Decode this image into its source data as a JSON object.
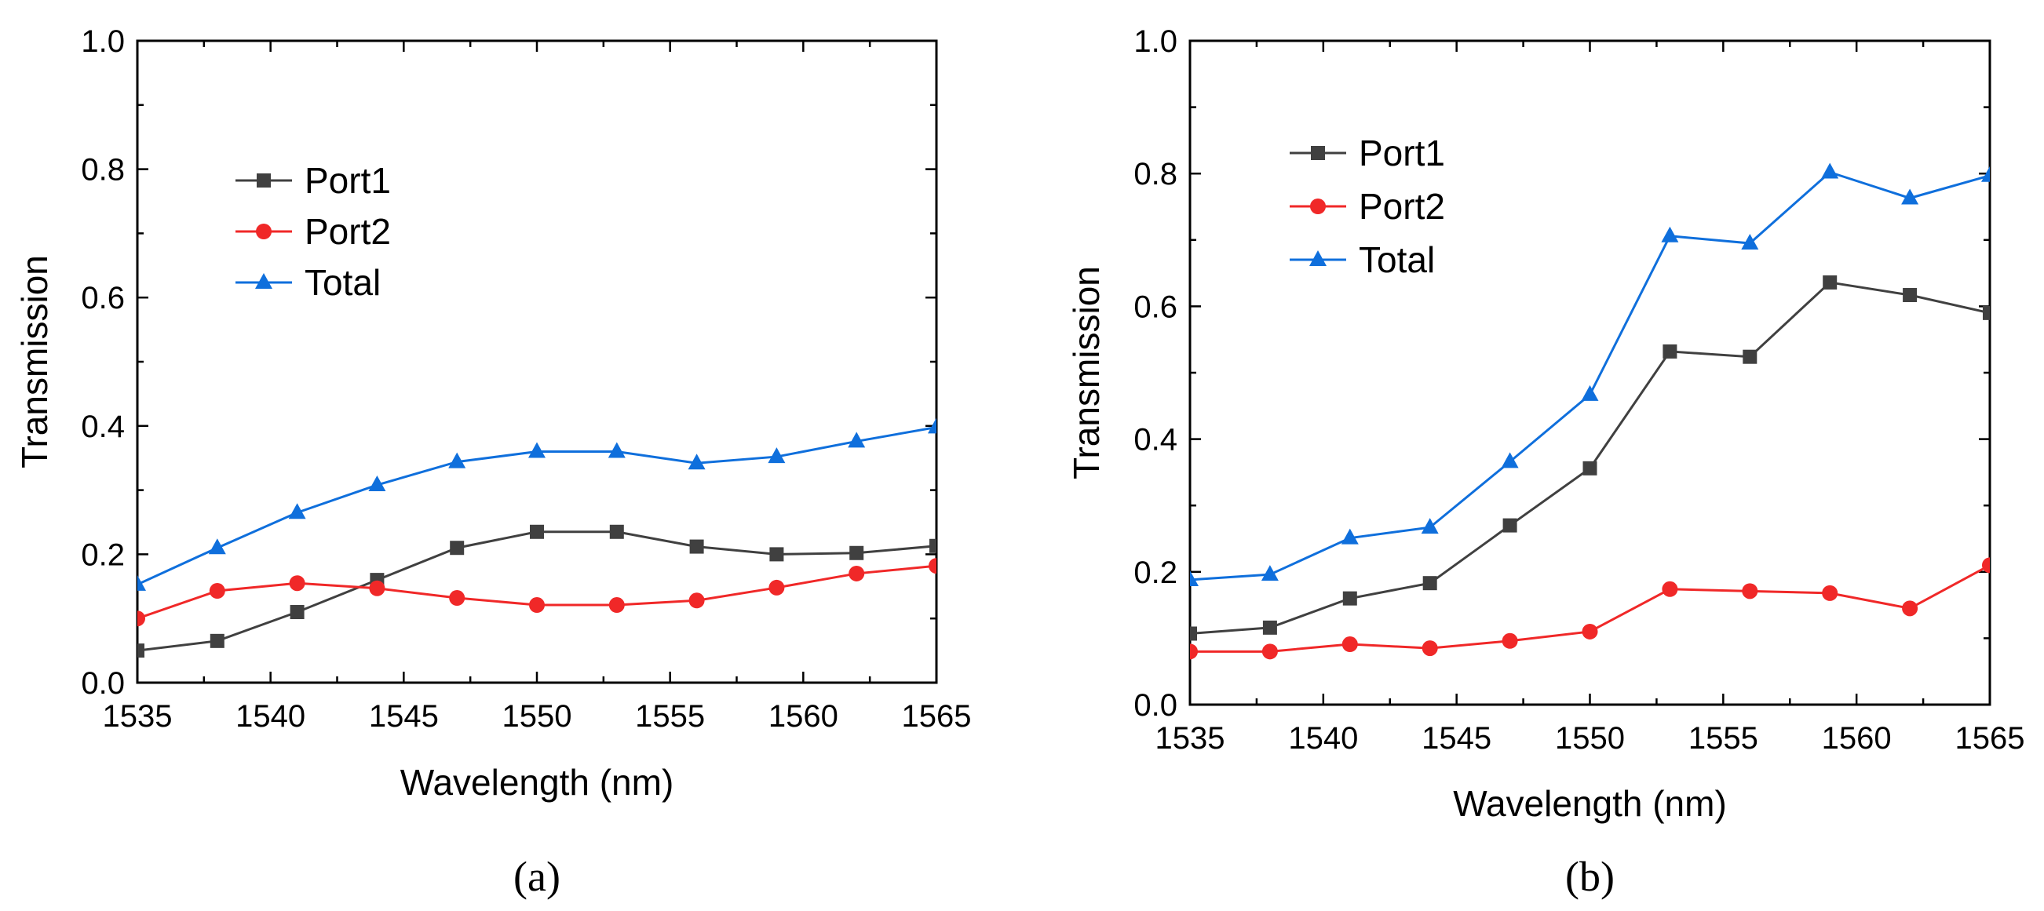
{
  "chart_data": [
    {
      "type": "line",
      "panel_label": "(a)",
      "xlabel": "Wavelength (nm)",
      "ylabel": "Transmission",
      "xlim": [
        1535,
        1565
      ],
      "ylim": [
        0.0,
        1.0
      ],
      "xticks": [
        1535,
        1540,
        1545,
        1550,
        1555,
        1560,
        1565
      ],
      "yticks": [
        0.0,
        0.2,
        0.4,
        0.6,
        0.8,
        1.0
      ],
      "ytick_labels": [
        "0.0",
        "0.2",
        "0.4",
        "0.6",
        "0.8",
        "1.0"
      ],
      "legend_position": "upper-left",
      "grid": false,
      "x": [
        1535,
        1538,
        1541,
        1544,
        1547,
        1550,
        1553,
        1556,
        1559,
        1562,
        1565
      ],
      "series": [
        {
          "name": "Port1",
          "color": "#404040",
          "marker": "square",
          "values": [
            0.05,
            0.065,
            0.11,
            0.16,
            0.21,
            0.235,
            0.235,
            0.212,
            0.2,
            0.202,
            0.213
          ]
        },
        {
          "name": "Port2",
          "color": "#f02828",
          "marker": "circle",
          "values": [
            0.1,
            0.143,
            0.155,
            0.147,
            0.132,
            0.121,
            0.121,
            0.128,
            0.148,
            0.17,
            0.182
          ]
        },
        {
          "name": "Total",
          "color": "#0f6fdc",
          "marker": "triangle",
          "values": [
            0.153,
            0.21,
            0.265,
            0.308,
            0.344,
            0.36,
            0.36,
            0.342,
            0.352,
            0.376,
            0.398
          ]
        }
      ]
    },
    {
      "type": "line",
      "panel_label": "(b)",
      "xlabel": "Wavelength (nm)",
      "ylabel": "Transmission",
      "xlim": [
        1535,
        1565
      ],
      "ylim": [
        0.0,
        1.0
      ],
      "xticks": [
        1535,
        1540,
        1545,
        1550,
        1555,
        1560,
        1565
      ],
      "yticks": [
        0.0,
        0.2,
        0.4,
        0.6,
        0.8,
        1.0
      ],
      "ytick_labels": [
        "0.0",
        "0.2",
        "0.4",
        "0.6",
        "0.8",
        "1.0"
      ],
      "legend_position": "upper-left",
      "grid": false,
      "x": [
        1535,
        1538,
        1541,
        1544,
        1547,
        1550,
        1553,
        1556,
        1559,
        1562,
        1565
      ],
      "series": [
        {
          "name": "Port1",
          "color": "#404040",
          "marker": "square",
          "values": [
            0.107,
            0.116,
            0.16,
            0.183,
            0.27,
            0.356,
            0.532,
            0.524,
            0.636,
            0.617,
            0.59
          ]
        },
        {
          "name": "Port2",
          "color": "#f02828",
          "marker": "circle",
          "values": [
            0.08,
            0.08,
            0.091,
            0.085,
            0.096,
            0.11,
            0.174,
            0.171,
            0.168,
            0.145,
            0.21
          ]
        },
        {
          "name": "Total",
          "color": "#0f6fdc",
          "marker": "triangle",
          "values": [
            0.188,
            0.196,
            0.251,
            0.267,
            0.366,
            0.467,
            0.706,
            0.695,
            0.802,
            0.763,
            0.797
          ]
        }
      ]
    }
  ]
}
